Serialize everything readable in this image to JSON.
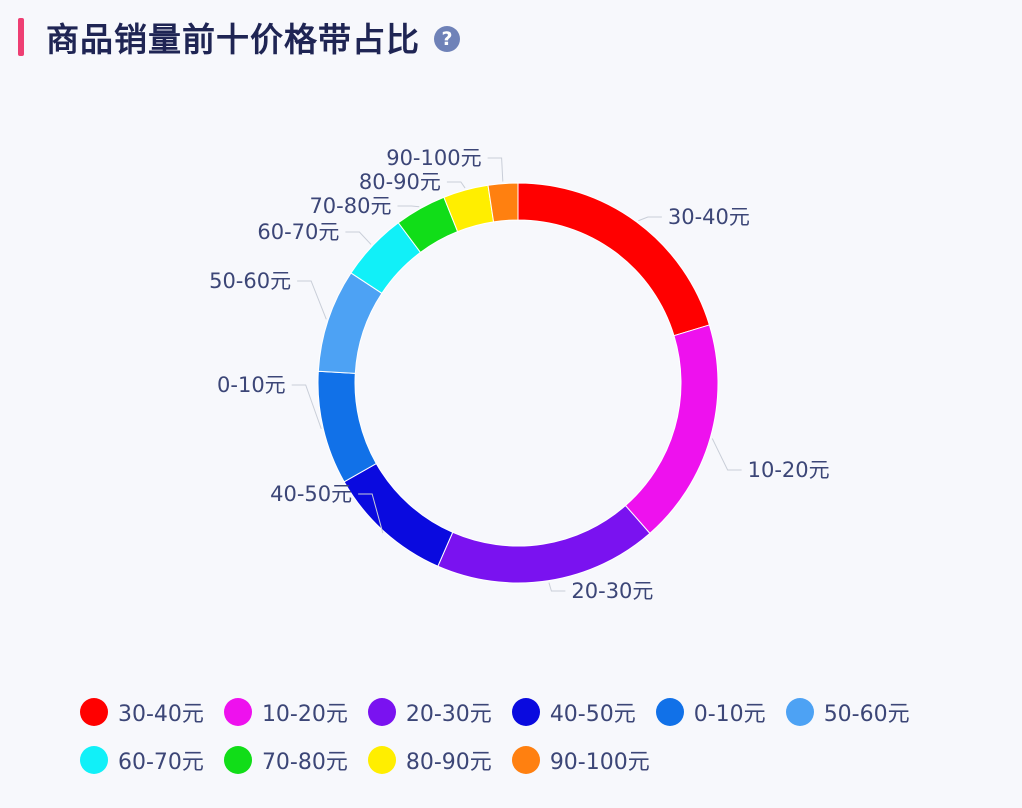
{
  "header": {
    "title": "商品销量前十价格带占比",
    "help_glyph": "?"
  },
  "chart_data": {
    "type": "pie",
    "donut": true,
    "categories": [
      "30-40元",
      "10-20元",
      "20-30元",
      "40-50元",
      "0-10元",
      "50-60元",
      "60-70元",
      "70-80元",
      "80-90元",
      "90-100元"
    ],
    "values": [
      19.5,
      17.5,
      17.3,
      9.8,
      8.8,
      8.0,
      5.3,
      4.0,
      3.5,
      2.3
    ],
    "colors": [
      "#ff0000",
      "#ee11ee",
      "#7a12f0",
      "#0a0adf",
      "#1171e8",
      "#4da2f4",
      "#11f0f8",
      "#11dd18",
      "#ffee00",
      "#ff8010"
    ],
    "legend_position": "bottom"
  }
}
